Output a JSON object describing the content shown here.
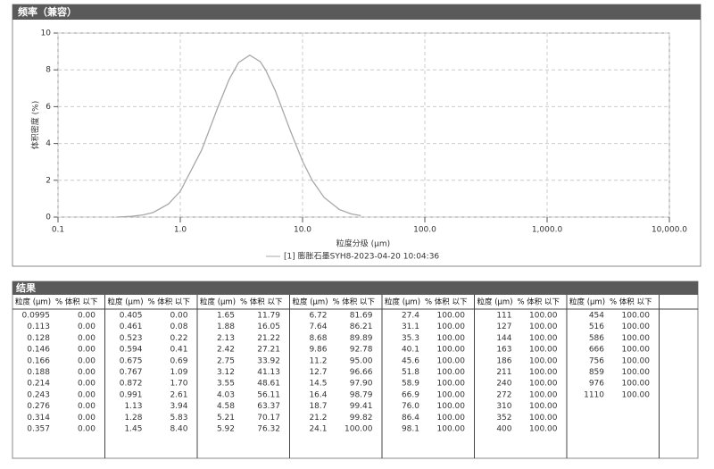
{
  "chart_data": {
    "type": "line",
    "title": "频率（兼容）",
    "xlabel": "粒度分级 (μm)",
    "ylabel": "体积密度 (%)",
    "x": [
      0.3,
      0.4,
      0.5,
      0.6,
      0.8,
      1,
      1.5,
      2,
      2.5,
      3,
      3.7,
      4.5,
      5,
      6,
      8,
      10,
      12,
      15,
      20,
      25,
      30
    ],
    "series": [
      {
        "name": "[1] 膨胀石墨SYH8-2023-04-20 10:04:36",
        "color": "#a8a8a8",
        "values": [
          0.0,
          0.04,
          0.12,
          0.25,
          0.71,
          1.4,
          3.66,
          5.86,
          7.46,
          8.4,
          8.8,
          8.45,
          7.98,
          6.85,
          4.64,
          3.04,
          1.99,
          1.07,
          0.41,
          0.17,
          0.08
        ]
      }
    ],
    "xscale": "log",
    "xlim": [
      0.1,
      10000
    ],
    "xticks": [
      0.1,
      {
        "value": 1,
        "label": "1.0"
      },
      {
        "value": 10,
        "label": "10.0"
      },
      {
        "value": 100,
        "label": "100.0"
      },
      {
        "value": 1000,
        "label": "1,000.0"
      },
      {
        "value": 10000,
        "label": "10,000.0"
      }
    ],
    "ylim": [
      0,
      10
    ],
    "yticks": [
      0,
      2,
      4,
      6,
      8,
      10
    ],
    "grid": true
  },
  "results": {
    "title": "结果",
    "headers": [
      "粒度 (μm)",
      "% 体积 以下"
    ],
    "groups": [
      [
        [
          "0.0995",
          "0.00"
        ],
        [
          "0.113",
          "0.00"
        ],
        [
          "0.128",
          "0.00"
        ],
        [
          "0.146",
          "0.00"
        ],
        [
          "0.166",
          "0.00"
        ],
        [
          "0.188",
          "0.00"
        ],
        [
          "0.214",
          "0.00"
        ],
        [
          "0.243",
          "0.00"
        ],
        [
          "0.276",
          "0.00"
        ],
        [
          "0.314",
          "0.00"
        ],
        [
          "0.357",
          "0.00"
        ]
      ],
      [
        [
          "0.405",
          "0.00"
        ],
        [
          "0.461",
          "0.08"
        ],
        [
          "0.523",
          "0.22"
        ],
        [
          "0.594",
          "0.41"
        ],
        [
          "0.675",
          "0.69"
        ],
        [
          "0.767",
          "1.09"
        ],
        [
          "0.872",
          "1.70"
        ],
        [
          "0.991",
          "2.61"
        ],
        [
          "1.13",
          "3.94"
        ],
        [
          "1.28",
          "5.83"
        ],
        [
          "1.45",
          "8.40"
        ]
      ],
      [
        [
          "1.65",
          "11.79"
        ],
        [
          "1.88",
          "16.05"
        ],
        [
          "2.13",
          "21.22"
        ],
        [
          "2.42",
          "27.21"
        ],
        [
          "2.75",
          "33.92"
        ],
        [
          "3.12",
          "41.13"
        ],
        [
          "3.55",
          "48.61"
        ],
        [
          "4.03",
          "56.11"
        ],
        [
          "4.58",
          "63.37"
        ],
        [
          "5.21",
          "70.17"
        ],
        [
          "5.92",
          "76.32"
        ]
      ],
      [
        [
          "6.72",
          "81.69"
        ],
        [
          "7.64",
          "86.21"
        ],
        [
          "8.68",
          "89.89"
        ],
        [
          "9.86",
          "92.78"
        ],
        [
          "11.2",
          "95.00"
        ],
        [
          "12.7",
          "96.66"
        ],
        [
          "14.5",
          "97.90"
        ],
        [
          "16.4",
          "98.79"
        ],
        [
          "18.7",
          "99.41"
        ],
        [
          "21.2",
          "99.82"
        ],
        [
          "24.1",
          "100.00"
        ]
      ],
      [
        [
          "27.4",
          "100.00"
        ],
        [
          "31.1",
          "100.00"
        ],
        [
          "35.3",
          "100.00"
        ],
        [
          "40.1",
          "100.00"
        ],
        [
          "45.6",
          "100.00"
        ],
        [
          "51.8",
          "100.00"
        ],
        [
          "58.9",
          "100.00"
        ],
        [
          "66.9",
          "100.00"
        ],
        [
          "76.0",
          "100.00"
        ],
        [
          "86.4",
          "100.00"
        ],
        [
          "98.1",
          "100.00"
        ]
      ],
      [
        [
          "111",
          "100.00"
        ],
        [
          "127",
          "100.00"
        ],
        [
          "144",
          "100.00"
        ],
        [
          "163",
          "100.00"
        ],
        [
          "186",
          "100.00"
        ],
        [
          "211",
          "100.00"
        ],
        [
          "240",
          "100.00"
        ],
        [
          "272",
          "100.00"
        ],
        [
          "310",
          "100.00"
        ],
        [
          "352",
          "100.00"
        ],
        [
          "400",
          "100.00"
        ]
      ],
      [
        [
          "454",
          "100.00"
        ],
        [
          "516",
          "100.00"
        ],
        [
          "586",
          "100.00"
        ],
        [
          "666",
          "100.00"
        ],
        [
          "756",
          "100.00"
        ],
        [
          "859",
          "100.00"
        ],
        [
          "976",
          "100.00"
        ],
        [
          "1110",
          "100.00"
        ]
      ]
    ]
  }
}
